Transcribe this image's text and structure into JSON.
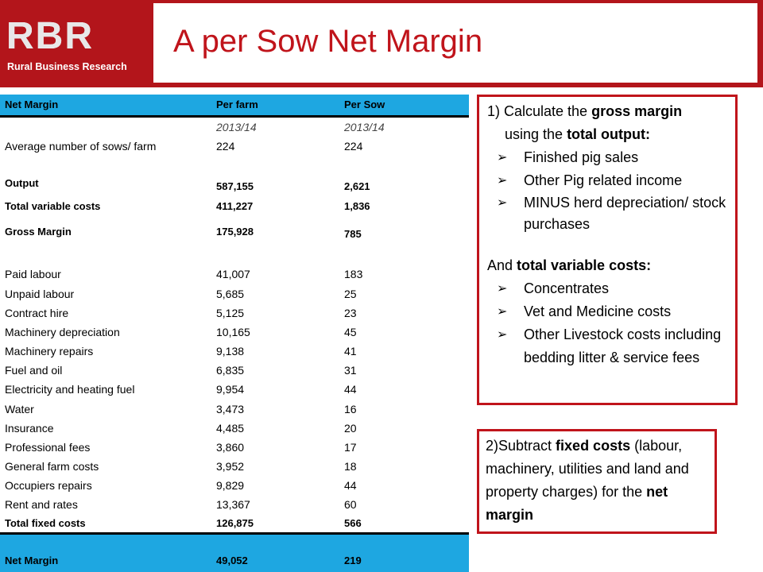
{
  "header": {
    "logo_text": "RBR",
    "logo_subtitle": "Rural Business Research",
    "title": "A per Sow Net Margin"
  },
  "table": {
    "columns": [
      "Net Margin",
      "Per farm",
      "Per Sow"
    ],
    "years": [
      "2013/14",
      "2013/14"
    ],
    "rows": [
      {
        "label": "Average number of sows/ farm",
        "per_farm": "224",
        "per_sow": "224"
      },
      {
        "label": "Output",
        "per_farm": "587,155",
        "per_sow": "2,621"
      },
      {
        "label": "Total variable costs",
        "per_farm": "411,227",
        "per_sow": "1,836"
      },
      {
        "label": "Gross Margin",
        "per_farm": "175,928",
        "per_sow": "785"
      },
      {
        "label": "Paid labour",
        "per_farm": "41,007",
        "per_sow": "183"
      },
      {
        "label": "Unpaid labour",
        "per_farm": "5,685",
        "per_sow": "25"
      },
      {
        "label": "Contract hire",
        "per_farm": "5,125",
        "per_sow": "23"
      },
      {
        "label": "Machinery depreciation",
        "per_farm": "10,165",
        "per_sow": "45"
      },
      {
        "label": "Machinery repairs",
        "per_farm": "9,138",
        "per_sow": "41"
      },
      {
        "label": "Fuel and oil",
        "per_farm": "6,835",
        "per_sow": "31"
      },
      {
        "label": "Electricity and heating fuel",
        "per_farm": "9,954",
        "per_sow": "44"
      },
      {
        "label": "Water",
        "per_farm": "3,473",
        "per_sow": "16"
      },
      {
        "label": "Insurance",
        "per_farm": "4,485",
        "per_sow": "20"
      },
      {
        "label": "Professional fees",
        "per_farm": "3,860",
        "per_sow": "17"
      },
      {
        "label": "General farm costs",
        "per_farm": "3,952",
        "per_sow": "18"
      },
      {
        "label": "Occupiers repairs",
        "per_farm": "9,829",
        "per_sow": "44"
      },
      {
        "label": "Rent and rates",
        "per_farm": "13,367",
        "per_sow": "60"
      },
      {
        "label": "Total fixed costs",
        "per_farm": "126,875",
        "per_sow": "566"
      },
      {
        "label": "Net Margin",
        "per_farm": "49,052",
        "per_sow": "219"
      }
    ]
  },
  "box1": {
    "intro_a": "1) Calculate the ",
    "intro_b": "gross margin",
    "intro_c": "using the ",
    "intro_d": "total output:",
    "output_items": [
      "Finished pig sales",
      "Other Pig related income",
      "MINUS herd depreciation/ stock purchases"
    ],
    "and_a": "And ",
    "and_b": "total variable costs:",
    "cost_items": [
      "Concentrates",
      "Vet and Medicine costs",
      "Other Livestock costs including bedding litter & service fees"
    ]
  },
  "box2": {
    "a": "2)Subtract ",
    "b": "fixed costs",
    "c": " (labour, machinery, utilities and land and property charges) for the ",
    "d": "net margin"
  },
  "colors": {
    "brand_red": "#b3151b",
    "table_blue": "#1ea7e1"
  }
}
